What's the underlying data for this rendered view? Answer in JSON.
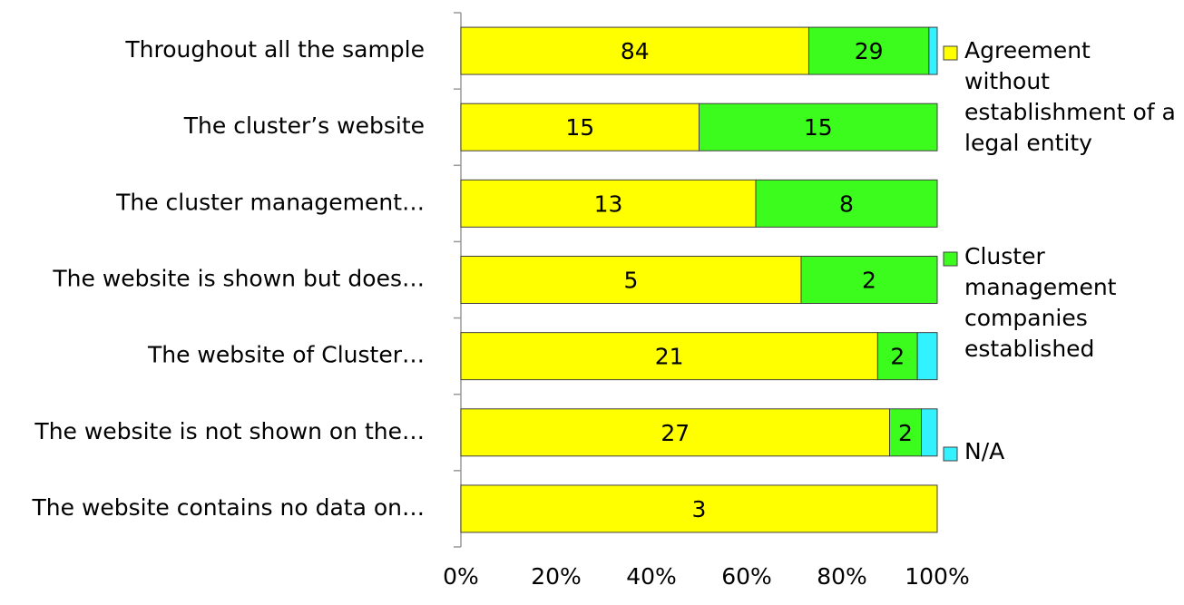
{
  "chart_data": {
    "type": "bar",
    "orientation": "horizontal",
    "stacking": "percent",
    "categories": [
      "Throughout all the sample",
      "The cluster’s website",
      "The cluster management…",
      "The website is shown but does…",
      "The website of Cluster…",
      "The website is not shown on the…",
      "The website contains no data on…"
    ],
    "series": [
      {
        "name": "Agreement without establishment of a legal entity",
        "color": "#ffff00",
        "values": [
          84,
          15,
          13,
          5,
          21,
          27,
          3
        ],
        "show_labels": true
      },
      {
        "name": "Cluster management companies established",
        "color": "#3cfc1e",
        "values": [
          29,
          15,
          8,
          2,
          2,
          2,
          0
        ],
        "show_labels": true
      },
      {
        "name": "N/A",
        "color": "#33f2ff",
        "values": [
          2,
          0,
          0,
          0,
          1,
          1,
          0
        ],
        "show_labels": false
      }
    ],
    "xlim": [
      0,
      100
    ],
    "xticks": [
      {
        "value": 0,
        "label": "0%"
      },
      {
        "value": 20,
        "label": "20%"
      },
      {
        "value": 40,
        "label": "40%"
      },
      {
        "value": 60,
        "label": "60%"
      },
      {
        "value": 80,
        "label": "80%"
      },
      {
        "value": 100,
        "label": "100%"
      }
    ],
    "legend": "right"
  }
}
